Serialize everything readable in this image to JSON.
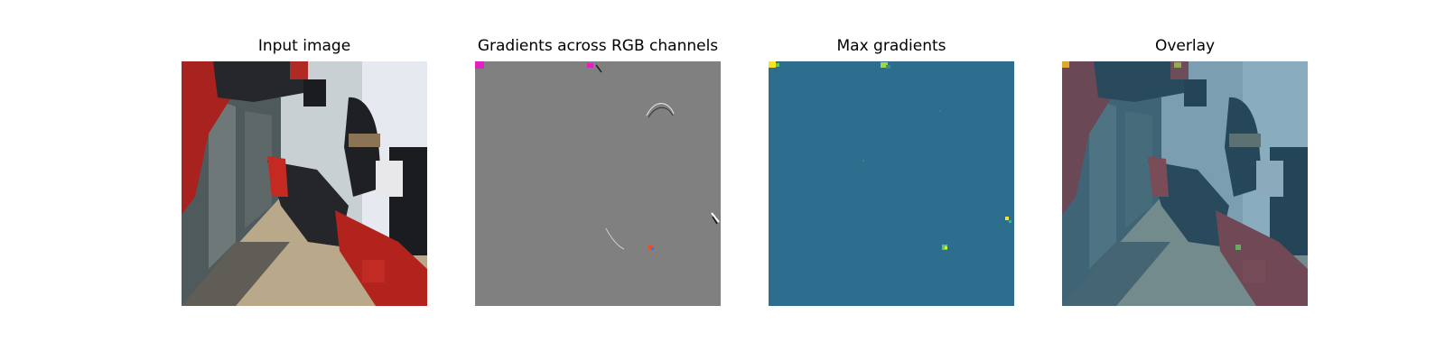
{
  "figure": {
    "panels": [
      {
        "title": "Input image"
      },
      {
        "title": "Gradients across RGB channels"
      },
      {
        "title": "Max gradients"
      },
      {
        "title": "Overlay"
      }
    ]
  },
  "colors": {
    "gradient_gray": "#808080",
    "max_gradient_teal": "#2d6e8e",
    "overlay_tint": "#2d6e8e",
    "robot_red": "#b3231e",
    "robot_black": "#222428"
  }
}
